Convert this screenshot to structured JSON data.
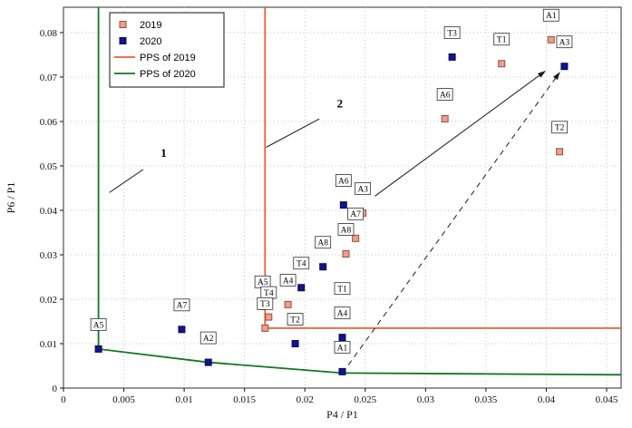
{
  "chart_data": {
    "type": "scatter",
    "title": "",
    "xlabel": "P4 / P1",
    "ylabel": "P6 / P1",
    "xlim": [
      0,
      0.0462
    ],
    "ylim": [
      0,
      0.0857
    ],
    "grid": "dotted",
    "legend_position": "top-left-inside",
    "xtick_values": [
      0,
      0.005,
      0.01,
      0.015,
      0.02,
      0.025,
      0.03,
      0.035,
      0.04,
      0.045
    ],
    "xtick_labels": [
      "0",
      "0.005",
      "0.01",
      "0.015",
      "0.02",
      "0.025",
      "0.03",
      "0.035",
      "0.04",
      "0.045"
    ],
    "ytick_values": [
      0,
      0.01,
      0.02,
      0.03,
      0.04,
      0.05,
      0.06,
      0.07,
      0.08
    ],
    "ytick_labels": [
      "0",
      "0.01",
      "0.02",
      "0.03",
      "0.04",
      "0.05",
      "0.06",
      "0.07",
      "0.08"
    ],
    "series": [
      {
        "name": "2019",
        "marker": "square",
        "fill": "#eb9f8f",
        "stroke": "#9c4a3c",
        "points": [
          {
            "label": "A1",
            "x": 0.0404,
            "y": 0.0784
          },
          {
            "label": "T1",
            "x": 0.0363,
            "y": 0.073
          },
          {
            "label": "T2",
            "x": 0.0411,
            "y": 0.0532
          },
          {
            "label": "A6",
            "x": 0.0316,
            "y": 0.0606
          },
          {
            "label": "A3",
            "x": 0.0248,
            "y": 0.0394
          },
          {
            "label": "A7",
            "x": 0.0242,
            "y": 0.0337
          },
          {
            "label": "A8",
            "x": 0.0234,
            "y": 0.0302
          },
          {
            "label": "A4",
            "x": 0.0186,
            "y": 0.0188
          },
          {
            "label": "A5",
            "x": 0.0165,
            "y": 0.0184
          },
          {
            "label": "T4",
            "x": 0.017,
            "y": 0.016
          },
          {
            "label": "T3",
            "x": 0.0167,
            "y": 0.0135
          }
        ]
      },
      {
        "name": "2020",
        "marker": "square",
        "fill": "#141487",
        "stroke": "#0a0a5a",
        "points": [
          {
            "label": "A1",
            "x": 0.0231,
            "y": 0.0037
          },
          {
            "label": "A2",
            "x": 0.012,
            "y": 0.0058
          },
          {
            "label": "A3",
            "x": 0.0415,
            "y": 0.0724
          },
          {
            "label": "A4",
            "x": 0.0231,
            "y": 0.0114
          },
          {
            "label": "A5",
            "x": 0.0029,
            "y": 0.0088
          },
          {
            "label": "A6",
            "x": 0.0232,
            "y": 0.0412
          },
          {
            "label": "A7",
            "x": 0.0098,
            "y": 0.0132
          },
          {
            "label": "A8",
            "x": 0.0215,
            "y": 0.0273
          },
          {
            "label": "T1",
            "x": 0.0231,
            "y": 0.0169
          },
          {
            "label": "T2",
            "x": 0.0192,
            "y": 0.01
          },
          {
            "label": "T3",
            "x": 0.0322,
            "y": 0.0745
          },
          {
            "label": "T4",
            "x": 0.0197,
            "y": 0.0226
          }
        ]
      }
    ],
    "frontiers": [
      {
        "name": "PPS of 2019",
        "color": "#ec5f33",
        "points": [
          [
            0.0167,
            0.0857
          ],
          [
            0.0167,
            0.0135
          ],
          [
            0.0462,
            0.0135
          ]
        ]
      },
      {
        "name": "PPS of 2020",
        "color": "#117722",
        "points": [
          [
            0.0029,
            0.0857
          ],
          [
            0.0029,
            0.0088
          ],
          [
            0.012,
            0.0058
          ],
          [
            0.0231,
            0.0034
          ],
          [
            0.0462,
            0.003
          ]
        ]
      }
    ],
    "arrows": [
      {
        "style": "solid",
        "x1": 0.0258,
        "y1": 0.0432,
        "x2": 0.0399,
        "y2": 0.0713
      },
      {
        "style": "dashed",
        "x1": 0.0236,
        "y1": 0.0052,
        "x2": 0.0411,
        "y2": 0.071
      }
    ],
    "annotations": [
      {
        "text": "1",
        "x": 0.0083,
        "y": 0.052,
        "leader": [
          [
            0.0038,
            0.044
          ],
          [
            0.0066,
            0.0492
          ]
        ]
      },
      {
        "text": "2",
        "x": 0.0229,
        "y": 0.0632,
        "leader": [
          [
            0.0168,
            0.0542
          ],
          [
            0.0212,
            0.0606
          ]
        ]
      }
    ],
    "colors": {
      "grid": "#c4c4c4",
      "plot_border": "#2e2e2e",
      "arrow": "#1a1a1a",
      "label_box_fill": "#ffffff",
      "label_box_stroke": "#2e2e2e"
    },
    "legend": {
      "entries": [
        {
          "type": "marker",
          "label": "2019"
        },
        {
          "type": "marker",
          "label": "2020"
        },
        {
          "type": "line",
          "label": "PPS of 2019"
        },
        {
          "type": "line",
          "label": "PPS of 2020"
        }
      ]
    }
  }
}
